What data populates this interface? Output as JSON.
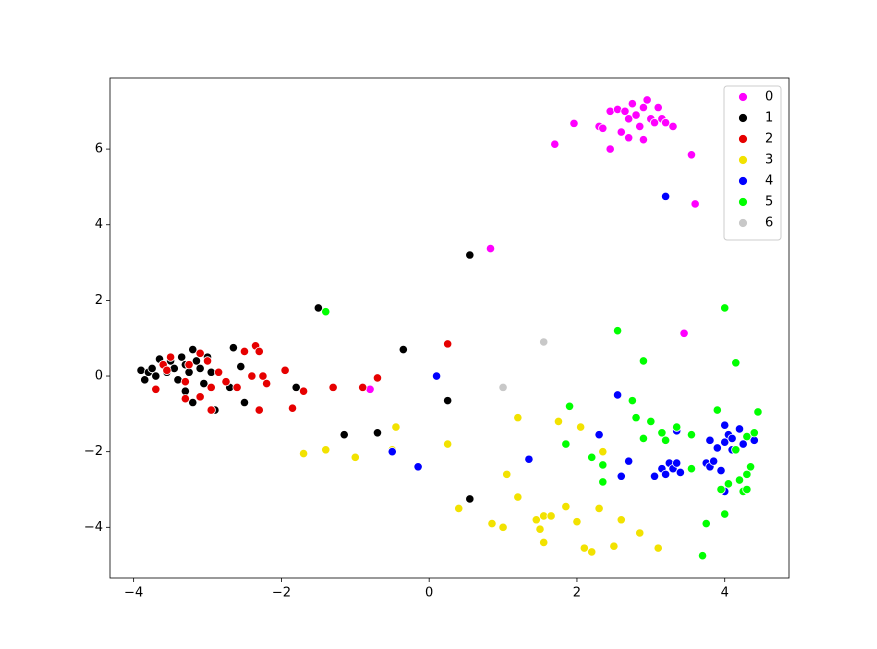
{
  "chart_data": {
    "type": "scatter",
    "xlim": [
      -4.32,
      4.87
    ],
    "ylim": [
      -5.34,
      7.88
    ],
    "xticks": [
      {
        "value": -4,
        "label": "−4"
      },
      {
        "value": -2,
        "label": "−2"
      },
      0,
      2,
      4
    ],
    "yticks": [
      {
        "value": -4,
        "label": "−4"
      },
      {
        "value": -2,
        "label": "−2"
      },
      0,
      2,
      4,
      6
    ],
    "legend": "upper right",
    "series": [
      {
        "name": "0",
        "color": "#ff00ff",
        "x": [
          0.83,
          1.7,
          1.96,
          2.3,
          2.35,
          2.45,
          2.55,
          2.6,
          2.45,
          2.7,
          2.65,
          2.75,
          2.7,
          2.8,
          2.9,
          2.95,
          2.85,
          2.9,
          3.0,
          3.05,
          3.15,
          3.1,
          3.2,
          3.3,
          3.45,
          3.55,
          3.6,
          -0.8
        ],
        "y": [
          3.37,
          6.13,
          6.68,
          6.6,
          6.55,
          7.0,
          7.05,
          6.45,
          6.0,
          6.3,
          7.0,
          7.2,
          6.8,
          6.9,
          7.1,
          7.3,
          6.6,
          6.25,
          6.8,
          6.7,
          6.8,
          7.1,
          6.7,
          6.6,
          1.13,
          5.85,
          4.55,
          -0.35
        ]
      },
      {
        "name": "1",
        "color": "#000000",
        "x": [
          -3.9,
          -3.85,
          -3.8,
          -3.75,
          -3.7,
          -3.65,
          -3.6,
          -3.55,
          -3.5,
          -3.45,
          -3.4,
          -3.35,
          -3.3,
          -3.25,
          -3.2,
          -3.15,
          -3.1,
          -3.05,
          -3.0,
          -2.95,
          -2.9,
          -3.3,
          -3.2,
          -2.65,
          -2.55,
          -2.5,
          -2.7,
          -1.8,
          -1.5,
          -1.15,
          -0.7,
          -0.35,
          0.25,
          0.55,
          0.55
        ],
        "y": [
          0.15,
          -0.1,
          0.1,
          0.2,
          0.0,
          0.45,
          0.3,
          0.1,
          0.4,
          0.2,
          -0.1,
          0.5,
          0.3,
          0.1,
          0.7,
          0.4,
          0.2,
          -0.2,
          0.5,
          0.1,
          -0.9,
          -0.4,
          -0.7,
          0.75,
          0.25,
          -0.7,
          -0.3,
          -0.3,
          1.8,
          -1.55,
          -1.5,
          0.7,
          -0.65,
          3.2,
          -3.25
        ]
      },
      {
        "name": "2",
        "color": "#e60000",
        "x": [
          -3.7,
          -3.6,
          -3.5,
          -3.55,
          -3.3,
          -3.25,
          -3.1,
          -3.0,
          -2.95,
          -3.1,
          -2.95,
          -2.85,
          -2.75,
          -2.6,
          -2.5,
          -2.35,
          -2.3,
          -2.4,
          -2.3,
          -2.25,
          -2.2,
          -1.95,
          -1.85,
          -1.7,
          -1.3,
          -0.9,
          -0.7,
          0.25,
          -3.3
        ],
        "y": [
          -0.35,
          0.3,
          0.5,
          0.15,
          -0.15,
          0.3,
          0.6,
          0.4,
          -0.3,
          -0.55,
          -0.9,
          0.1,
          -0.15,
          -0.3,
          0.65,
          0.8,
          0.65,
          0.0,
          -0.9,
          0.0,
          -0.2,
          0.15,
          -0.85,
          -0.4,
          -0.3,
          -0.3,
          -0.05,
          0.85,
          -0.6
        ]
      },
      {
        "name": "3",
        "color": "#f2e200",
        "x": [
          -1.7,
          -1.4,
          -1.0,
          -0.5,
          -0.45,
          0.25,
          0.4,
          0.85,
          1.0,
          1.05,
          1.2,
          1.2,
          1.45,
          1.5,
          1.55,
          1.55,
          1.65,
          1.75,
          1.85,
          2.0,
          2.05,
          2.1,
          2.2,
          2.3,
          2.35,
          2.5,
          2.6,
          2.85,
          3.1
        ],
        "y": [
          -2.05,
          -1.95,
          -2.15,
          -1.95,
          -1.35,
          -1.8,
          -3.5,
          -3.9,
          -4.0,
          -2.6,
          -1.1,
          -3.2,
          -3.8,
          -4.05,
          -4.4,
          -3.7,
          -3.7,
          -1.2,
          -3.45,
          -3.85,
          -1.35,
          -4.55,
          -4.65,
          -3.5,
          -2.0,
          -4.5,
          -3.8,
          -4.15,
          -4.55
        ]
      },
      {
        "name": "4",
        "color": "#0000ff",
        "x": [
          -0.5,
          -0.15,
          0.1,
          1.35,
          2.3,
          2.55,
          2.6,
          2.7,
          3.05,
          3.15,
          3.2,
          3.25,
          3.3,
          3.35,
          3.4,
          3.35,
          3.2,
          3.75,
          3.8,
          3.8,
          3.85,
          3.9,
          3.95,
          4.0,
          4.0,
          4.0,
          4.05,
          4.1,
          4.1,
          4.2,
          4.25,
          4.35,
          4.4
        ],
        "y": [
          -2.0,
          -2.4,
          0.0,
          -2.2,
          -1.55,
          -0.5,
          -2.65,
          -2.25,
          -2.65,
          -2.45,
          -2.6,
          -2.3,
          -2.45,
          -2.3,
          -2.55,
          -1.45,
          4.75,
          -2.3,
          -2.4,
          -1.7,
          -2.25,
          -1.9,
          -2.5,
          -1.75,
          -3.05,
          -1.3,
          -1.55,
          -1.65,
          -1.95,
          -1.4,
          -1.8,
          -1.6,
          -1.7
        ]
      },
      {
        "name": "5",
        "color": "#00ff00",
        "x": [
          -1.4,
          1.9,
          1.85,
          2.2,
          2.35,
          2.35,
          2.55,
          2.75,
          2.8,
          2.9,
          2.9,
          3.0,
          3.15,
          3.2,
          3.35,
          3.55,
          3.55,
          3.7,
          3.75,
          3.9,
          3.95,
          4.0,
          4.0,
          4.05,
          4.15,
          4.15,
          4.2,
          4.25,
          4.3,
          4.3,
          4.35,
          4.3,
          4.4,
          4.45
        ],
        "y": [
          1.7,
          -0.8,
          -1.8,
          -2.15,
          -2.35,
          -2.8,
          1.2,
          -0.65,
          -1.1,
          -1.65,
          0.4,
          -1.2,
          -1.5,
          -1.7,
          -1.35,
          -2.45,
          -1.55,
          -4.75,
          -3.9,
          -0.9,
          -3.0,
          -3.65,
          1.8,
          -2.85,
          0.35,
          -1.95,
          -2.75,
          -3.05,
          -3.0,
          -2.6,
          -2.4,
          -1.6,
          -1.5,
          -0.95
        ]
      },
      {
        "name": "6",
        "color": "#c8c8c8",
        "x": [
          1.0,
          1.55
        ],
        "y": [
          -0.3,
          0.9
        ]
      }
    ]
  }
}
